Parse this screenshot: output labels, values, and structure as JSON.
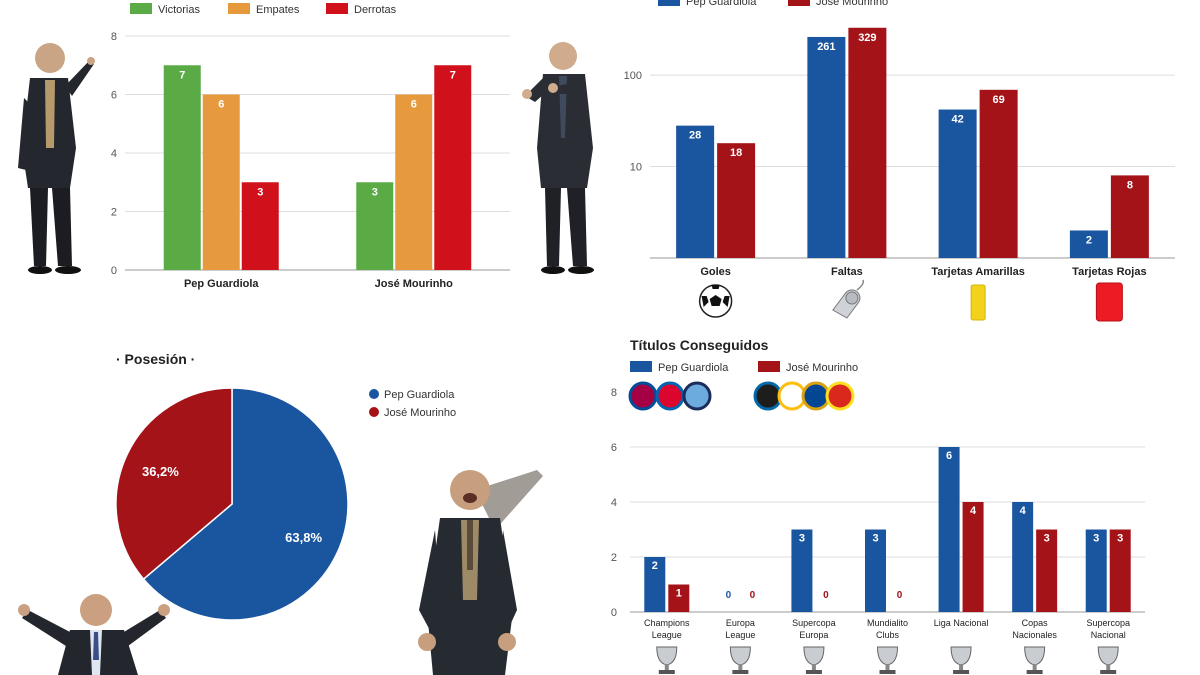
{
  "colors": {
    "victorias": "#5aaa46",
    "empates": "#e69a3d",
    "derrotas": "#d0101a",
    "pep": "#1a56a0",
    "mou": "#a31318",
    "grid": "#dddddd",
    "axis": "#555555"
  },
  "icons": {
    "goles": "soccer-ball-icon",
    "faltas": "whistle-icon",
    "amarillas": "yellow-card-icon",
    "rojas": "red-card-icon",
    "pep_clubs": [
      "fc-barcelona-crest-icon",
      "bayern-munich-crest-icon",
      "manchester-city-crest-icon"
    ],
    "mou_clubs": [
      "inter-crest-icon",
      "real-madrid-crest-icon",
      "chelsea-crest-icon",
      "manchester-united-crest-icon"
    ],
    "trophies": [
      "champions-trophy-icon",
      "europa-trophy-icon",
      "supercopa-europa-trophy-icon",
      "mundialito-trophy-icon",
      "liga-trophy-icon",
      "copa-trophy-icon",
      "supercopa-nacional-trophy-icon"
    ]
  },
  "chart_data": [
    {
      "id": "results",
      "type": "bar",
      "title": "",
      "categories": [
        "Pep Guardiola",
        "José Mourinho"
      ],
      "series": [
        {
          "name": "Victorias",
          "values": [
            7,
            3
          ]
        },
        {
          "name": "Empates",
          "values": [
            6,
            6
          ]
        },
        {
          "name": "Derrotas",
          "values": [
            3,
            7
          ]
        }
      ],
      "ylim": [
        0,
        8
      ],
      "yticks": [
        0,
        2,
        4,
        6,
        8
      ],
      "grid": true,
      "legend": "top-left",
      "data_labels": true
    },
    {
      "id": "stats",
      "type": "bar",
      "title": "",
      "scale": "log",
      "categories": [
        "Goles",
        "Faltas",
        "Tarjetas Amarillas",
        "Tarjetas Rojas"
      ],
      "series": [
        {
          "name": "Pep Guardiola",
          "values": [
            28,
            261,
            42,
            2
          ]
        },
        {
          "name": "José Mourinho",
          "values": [
            18,
            329,
            69,
            8
          ]
        }
      ],
      "ylim": [
        1,
        400
      ],
      "yticks": [
        10,
        100
      ],
      "grid": true,
      "legend": "top-left",
      "data_labels": true
    },
    {
      "id": "posesion",
      "type": "pie",
      "title": "· Posesión ·",
      "slices": [
        {
          "name": "Pep Guardiola",
          "value": 63.8,
          "label": "63,8%"
        },
        {
          "name": "José Mourinho",
          "value": 36.2,
          "label": "36,2%"
        }
      ],
      "legend": "right"
    },
    {
      "id": "titulos",
      "type": "bar",
      "title": "Títulos Conseguidos",
      "categories": [
        [
          "Champions",
          "League"
        ],
        [
          "Europa",
          "League"
        ],
        [
          "Supercopa",
          "Europa"
        ],
        [
          "Mundialito",
          "Clubs"
        ],
        [
          "Liga Nacional"
        ],
        [
          "Copas",
          "Nacionales"
        ],
        [
          "Supercopa",
          "Nacional"
        ]
      ],
      "series": [
        {
          "name": "Pep Guardiola",
          "values": [
            2,
            0,
            3,
            3,
            6,
            4,
            3
          ]
        },
        {
          "name": "José Mourinho",
          "values": [
            1,
            0,
            0,
            0,
            4,
            3,
            3
          ]
        }
      ],
      "ylim": [
        0,
        8
      ],
      "yticks": [
        0,
        2,
        4,
        6,
        8
      ],
      "grid": true,
      "legend": "top-left",
      "data_labels": true
    }
  ]
}
